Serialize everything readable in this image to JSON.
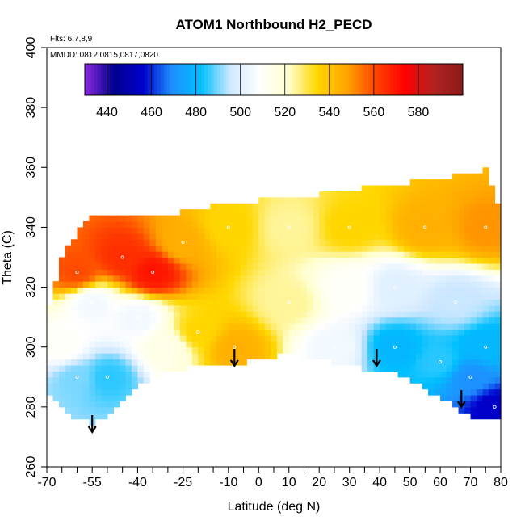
{
  "chart_data": {
    "type": "heatmap",
    "title": "ATOM1 Northbound H2_PECD",
    "annotations": [
      "Flts: 6,7,8,9",
      "MMDD: 0812,0815,0817,0820"
    ],
    "xlabel": "Latitude (deg N)",
    "ylabel": "Theta (C)",
    "xlim": [
      -70,
      80
    ],
    "ylim": [
      260,
      400
    ],
    "x_ticks_labeled": [
      -70,
      -55,
      -40,
      -25,
      -10,
      0,
      10,
      20,
      30,
      40,
      50,
      60,
      70,
      80
    ],
    "x_ticks_minor": [
      -65,
      -60,
      -50,
      -45,
      -35,
      -30,
      -20,
      -15,
      -5,
      5,
      15,
      25,
      35,
      45,
      55,
      65,
      75
    ],
    "y_ticks": [
      260,
      280,
      300,
      320,
      340,
      360,
      380,
      400
    ],
    "colorbar": {
      "min": 430,
      "max": 600,
      "ticks": [
        440,
        460,
        480,
        500,
        520,
        540,
        560,
        580
      ],
      "colors": [
        "#8a2be2",
        "#00008b",
        "#0000cd",
        "#1e90ff",
        "#00bfff",
        "#cfe8ff",
        "#ffffff",
        "#ffffd0",
        "#ffd700",
        "#ffa500",
        "#ff4500",
        "#ff0000",
        "#b22222",
        "#8b1a1a"
      ],
      "placement": "top-inside"
    },
    "arrows_latitude": [
      -55,
      -8,
      39,
      67
    ],
    "field_extent": {
      "lat": [
        -70,
        -65,
        -60,
        -55,
        -50,
        -45,
        -40,
        -35,
        -30,
        -25,
        -20,
        -15,
        -10,
        -5,
        0,
        5,
        10,
        15,
        20,
        25,
        30,
        35,
        40,
        45,
        50,
        55,
        60,
        65,
        70,
        75,
        80
      ],
      "theta_bottom": [
        285,
        280,
        276,
        275,
        277,
        282,
        287,
        290,
        292,
        293,
        294,
        294,
        295,
        295,
        296,
        297,
        298,
        297,
        296,
        295,
        294,
        293,
        293,
        292,
        289,
        286,
        283,
        280,
        277,
        276,
        276
      ],
      "theta_top": [
        310,
        330,
        338,
        343,
        344,
        344,
        344,
        344,
        344,
        345,
        346,
        347,
        347,
        348,
        349,
        349,
        350,
        350,
        351,
        352,
        352,
        353,
        353,
        354,
        355,
        355,
        356,
        357,
        358,
        359,
        345
      ]
    },
    "sample_points": [
      {
        "lat": -60,
        "theta": 325,
        "value": 560
      },
      {
        "lat": -45,
        "theta": 330,
        "value": 565
      },
      {
        "lat": -35,
        "theta": 325,
        "value": 570
      },
      {
        "lat": -25,
        "theta": 335,
        "value": 545
      },
      {
        "lat": -10,
        "theta": 340,
        "value": 535
      },
      {
        "lat": 10,
        "theta": 340,
        "value": 525
      },
      {
        "lat": 30,
        "theta": 340,
        "value": 535
      },
      {
        "lat": 55,
        "theta": 340,
        "value": 545
      },
      {
        "lat": 75,
        "theta": 340,
        "value": 550
      },
      {
        "lat": -55,
        "theta": 315,
        "value": 505
      },
      {
        "lat": -40,
        "theta": 310,
        "value": 505
      },
      {
        "lat": -20,
        "theta": 305,
        "value": 535
      },
      {
        "lat": -8,
        "theta": 300,
        "value": 545
      },
      {
        "lat": 10,
        "theta": 315,
        "value": 525
      },
      {
        "lat": 30,
        "theta": 320,
        "value": 510
      },
      {
        "lat": 45,
        "theta": 320,
        "value": 500
      },
      {
        "lat": 65,
        "theta": 315,
        "value": 495
      },
      {
        "lat": 45,
        "theta": 300,
        "value": 480
      },
      {
        "lat": 60,
        "theta": 295,
        "value": 485
      },
      {
        "lat": 70,
        "theta": 290,
        "value": 470
      },
      {
        "lat": 78,
        "theta": 280,
        "value": 455
      },
      {
        "lat": -65,
        "theta": 300,
        "value": 510
      },
      {
        "lat": -60,
        "theta": 290,
        "value": 490
      },
      {
        "lat": -50,
        "theta": 290,
        "value": 485
      },
      {
        "lat": -30,
        "theta": 300,
        "value": 515
      },
      {
        "lat": 25,
        "theta": 300,
        "value": 505
      },
      {
        "lat": 75,
        "theta": 300,
        "value": 480
      }
    ]
  }
}
